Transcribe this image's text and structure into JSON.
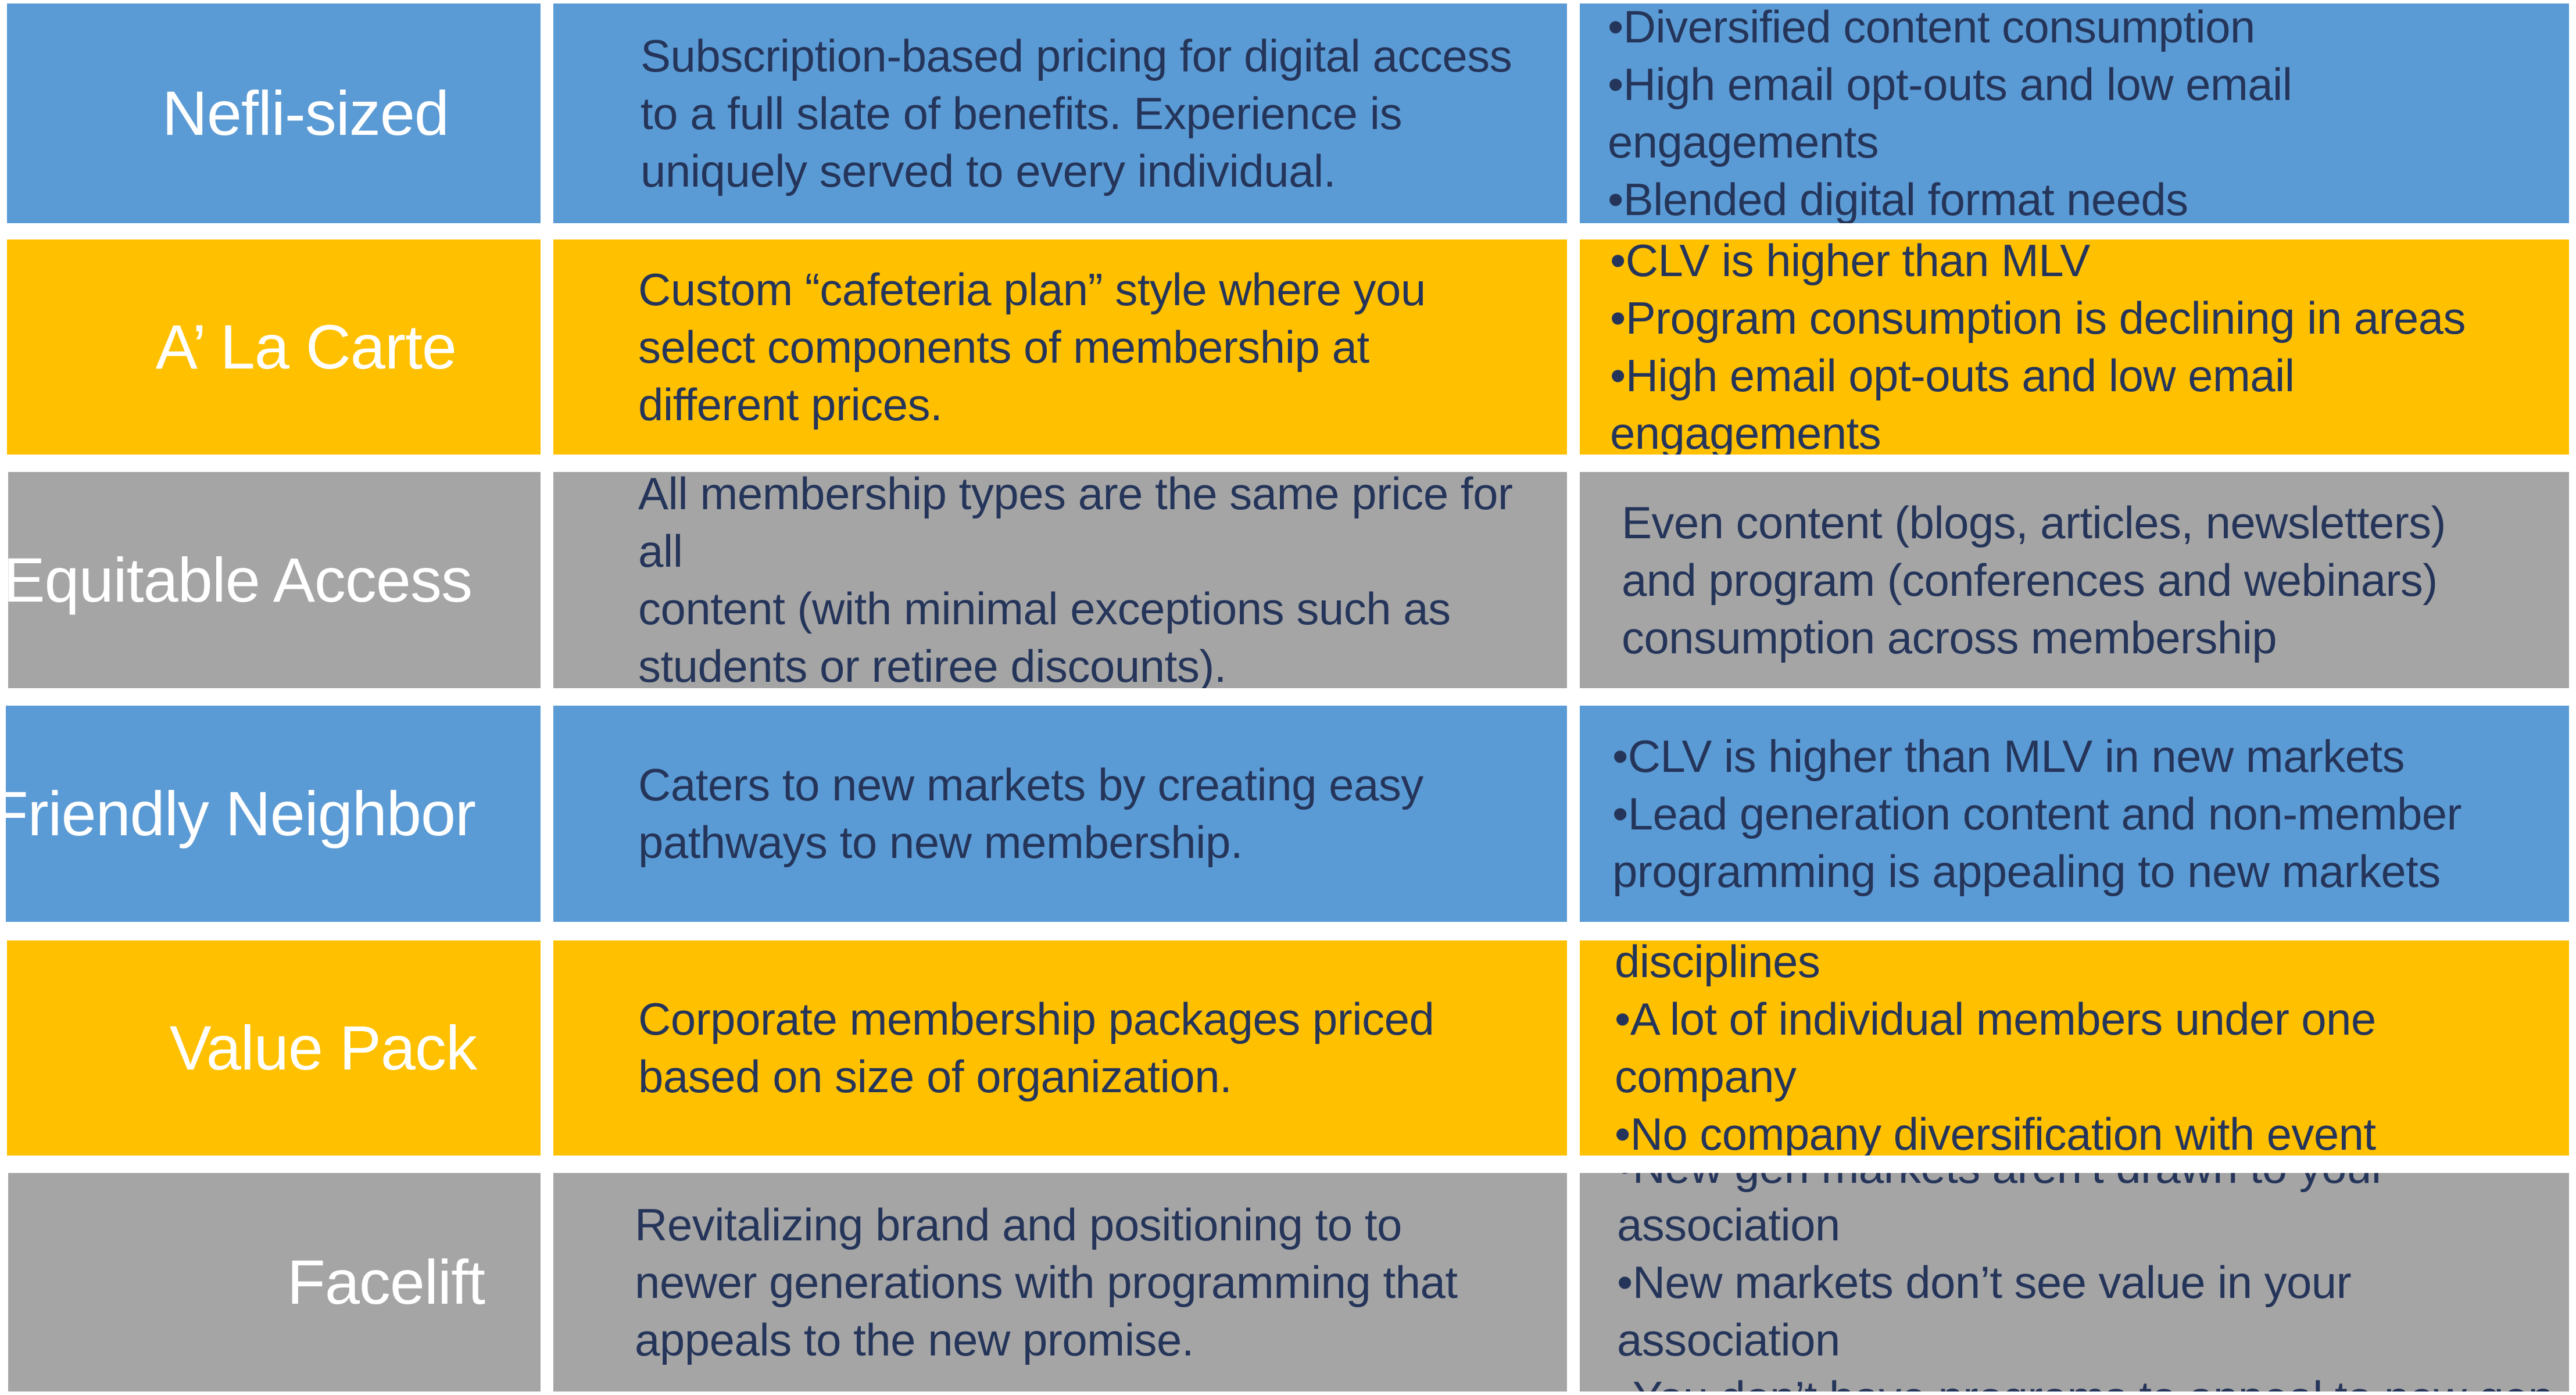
{
  "rows": [
    {
      "name": "Nefli-sized",
      "color": "#5b9bd5",
      "description": "Subscription-based pricing for digital access\nto a full slate of benefits. Experience is\nuniquely served to every individual.",
      "indicators": [
        "•Diversified content consumption",
        "•High email opt-outs and low email engagements",
        "•Blended digital format needs"
      ]
    },
    {
      "name": "A’ La Carte",
      "color": "#ffc000",
      "description": "Custom “cafeteria plan” style where you\nselect components of membership at\ndifferent prices.",
      "indicators": [
        "•CLV is higher than MLV",
        "•Program consumption is declining in areas",
        "•High email opt-outs and low email engagements"
      ]
    },
    {
      "name": "Equitable Access",
      "color": "#a5a5a5",
      "description": "All membership types are the same price for all\ncontent (with minimal exceptions such as\nstudents or retiree discounts).",
      "indicators": [
        "Even content (blogs, articles, newsletters)\nand program (conferences and webinars)\nconsumption across membership"
      ]
    },
    {
      "name": "Friendly Neighbor",
      "color": "#5b9bd5",
      "description": "Caters to new markets by creating easy\npathways to new membership.",
      "indicators": [
        "•CLV is higher than MLV in new markets",
        "•Lead generation content and non-member\nprogramming is appealing to new markets"
      ]
    },
    {
      "name": "Value Pack",
      "color": "#ffc000",
      "description": "Corporate membership packages priced\nbased on size of organization.",
      "indicators": [
        "•Diverse segments across functions and disciplines",
        "•A lot of individual members under one company",
        "•No company diversification with event attendance"
      ]
    },
    {
      "name": "Facelift",
      "color": "#a5a5a5",
      "description": "Revitalizing brand and positioning to to\nnewer generations with programming that\nappeals to the new promise.",
      "indicators": [
        "•New gen markets aren’t drawn to your association",
        "•New markets don’t see value in your association",
        "•You don’t have programs to appeal to new gen"
      ]
    }
  ]
}
